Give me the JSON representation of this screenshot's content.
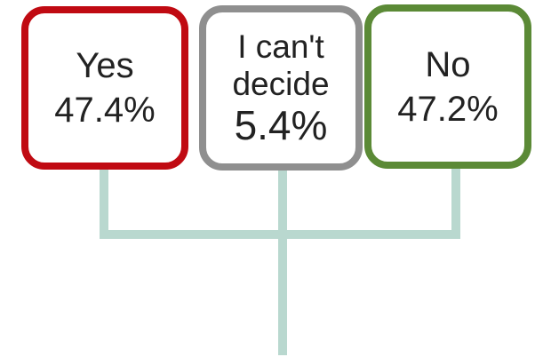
{
  "options": [
    {
      "id": "yes",
      "label": "Yes",
      "value": "47.4%",
      "border_color": "#c00a12"
    },
    {
      "id": "undecided",
      "label_lines": [
        "I can't",
        "decide"
      ],
      "value": "5.4%",
      "border_color": "#8f8f8f"
    },
    {
      "id": "no",
      "label": "No",
      "value": "47.2%",
      "border_color": "#5b8a36"
    }
  ],
  "connector_color": "#b9d8cf"
}
